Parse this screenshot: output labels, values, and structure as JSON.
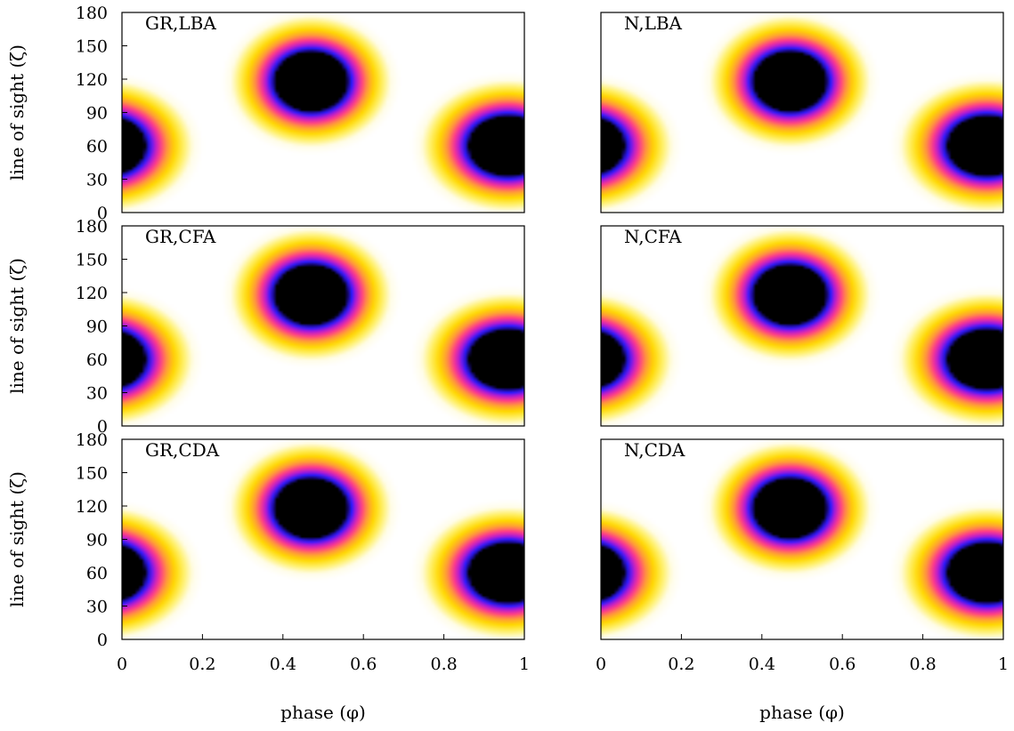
{
  "colormap": [
    "#000000",
    "#1a0a8c",
    "#2b1bff",
    "#b01ad6",
    "#ff3a8c",
    "#ff9a3a",
    "#ffd800",
    "#fff066",
    "#fffde8",
    "#ffffff"
  ],
  "chart_data": {
    "type": "heatmap",
    "layout": "3x2",
    "xlabel": "phase (φ)",
    "ylabel": "line of sight (ζ)",
    "xlim": [
      0,
      1
    ],
    "ylim": [
      0,
      180
    ],
    "x_ticks": [
      "0",
      "0.2",
      "0.4",
      "0.6",
      "0.8",
      "1"
    ],
    "y_ticks": [
      "0",
      "30",
      "60",
      "90",
      "120",
      "150",
      "180"
    ],
    "grid": false,
    "panels": [
      {
        "label": "GR,LBA",
        "dark_spots": [
          {
            "phase": 0.47,
            "zeta": 118,
            "phase_radius": 0.115,
            "zeta_radius": 34
          },
          {
            "phase": 0.96,
            "zeta": 60,
            "phase_radius": 0.125,
            "zeta_radius": 34
          },
          {
            "phase": -0.04,
            "zeta": 60,
            "phase_radius": 0.125,
            "zeta_radius": 34
          }
        ]
      },
      {
        "label": "N,LBA",
        "dark_spots": [
          {
            "phase": 0.47,
            "zeta": 118,
            "phase_radius": 0.115,
            "zeta_radius": 34
          },
          {
            "phase": 0.96,
            "zeta": 60,
            "phase_radius": 0.125,
            "zeta_radius": 34
          },
          {
            "phase": -0.04,
            "zeta": 60,
            "phase_radius": 0.125,
            "zeta_radius": 34
          }
        ]
      },
      {
        "label": "GR,CFA",
        "dark_spots": [
          {
            "phase": 0.47,
            "zeta": 118,
            "phase_radius": 0.115,
            "zeta_radius": 34
          },
          {
            "phase": 0.96,
            "zeta": 60,
            "phase_radius": 0.125,
            "zeta_radius": 34
          },
          {
            "phase": -0.04,
            "zeta": 60,
            "phase_radius": 0.125,
            "zeta_radius": 34
          }
        ]
      },
      {
        "label": "N,CFA",
        "dark_spots": [
          {
            "phase": 0.47,
            "zeta": 118,
            "phase_radius": 0.115,
            "zeta_radius": 34
          },
          {
            "phase": 0.96,
            "zeta": 60,
            "phase_radius": 0.125,
            "zeta_radius": 34
          },
          {
            "phase": -0.04,
            "zeta": 60,
            "phase_radius": 0.125,
            "zeta_radius": 34
          }
        ]
      },
      {
        "label": "GR,CDA",
        "dark_spots": [
          {
            "phase": 0.47,
            "zeta": 118,
            "phase_radius": 0.115,
            "zeta_radius": 34
          },
          {
            "phase": 0.96,
            "zeta": 60,
            "phase_radius": 0.125,
            "zeta_radius": 34
          },
          {
            "phase": -0.04,
            "zeta": 60,
            "phase_radius": 0.125,
            "zeta_radius": 34
          }
        ]
      },
      {
        "label": "N,CDA",
        "dark_spots": [
          {
            "phase": 0.47,
            "zeta": 118,
            "phase_radius": 0.115,
            "zeta_radius": 34
          },
          {
            "phase": 0.96,
            "zeta": 60,
            "phase_radius": 0.125,
            "zeta_radius": 34
          },
          {
            "phase": -0.04,
            "zeta": 60,
            "phase_radius": 0.125,
            "zeta_radius": 34
          }
        ]
      }
    ]
  }
}
